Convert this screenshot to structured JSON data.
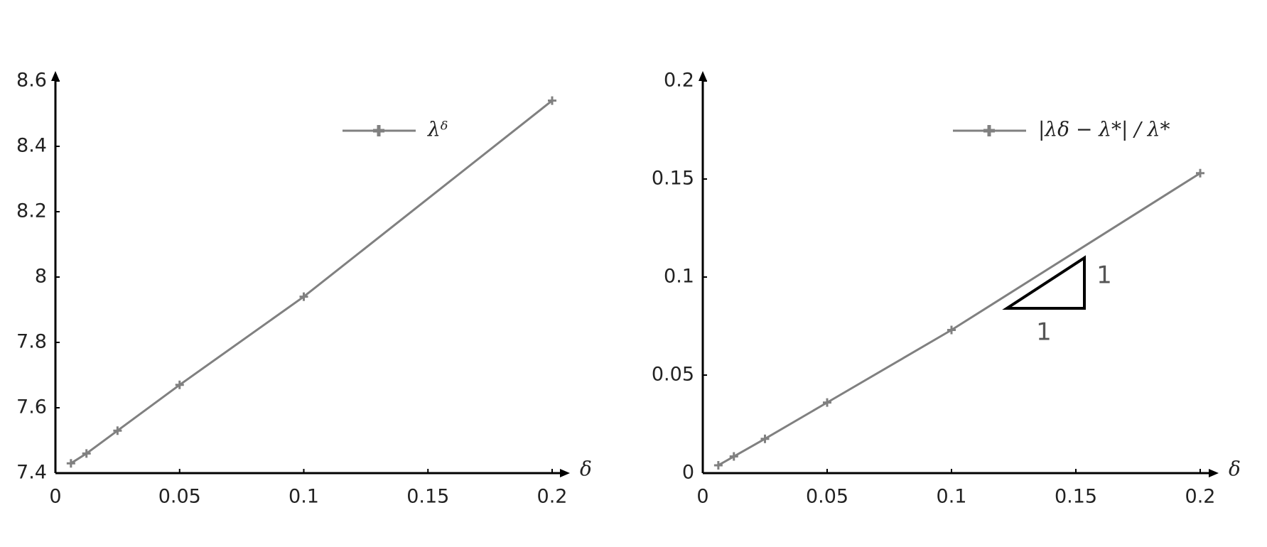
{
  "chart_data": [
    {
      "type": "line",
      "x_label": "δ",
      "x": [
        0.00625,
        0.0125,
        0.025,
        0.05,
        0.1,
        0.2
      ],
      "series": [
        {
          "name": "λᵟ",
          "color": "#808080",
          "values": [
            7.43,
            7.46,
            7.53,
            7.67,
            7.94,
            8.54
          ]
        }
      ],
      "xlim": [
        0,
        0.2
      ],
      "xticks": [
        0,
        0.05,
        0.1,
        0.15,
        0.2
      ],
      "ylim": [
        7.4,
        8.6
      ],
      "yticks": [
        7.4,
        7.6,
        7.8,
        8,
        8.2,
        8.4,
        8.6
      ]
    },
    {
      "type": "line",
      "x_label": "δ",
      "x": [
        0.00625,
        0.0125,
        0.025,
        0.05,
        0.1,
        0.2
      ],
      "series": [
        {
          "name": "|λδ − λ*| / λ*",
          "color": "#808080",
          "values": [
            0.004,
            0.0085,
            0.0175,
            0.036,
            0.073,
            0.153
          ]
        }
      ],
      "xlim": [
        0,
        0.2
      ],
      "xticks": [
        0,
        0.05,
        0.1,
        0.15,
        0.2
      ],
      "ylim": [
        0,
        0.2
      ],
      "yticks": [
        0,
        0.05,
        0.1,
        0.15,
        0.2
      ],
      "annotations": [
        "1",
        "1"
      ]
    }
  ]
}
